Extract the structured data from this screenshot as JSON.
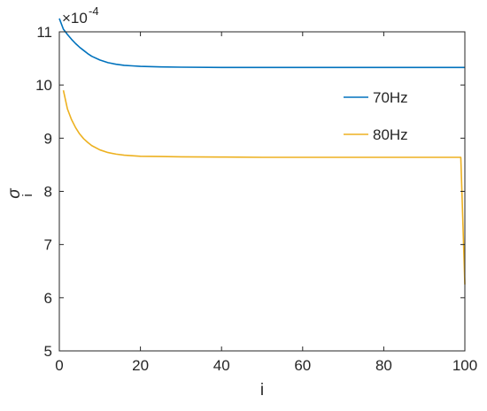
{
  "chart_data": {
    "type": "line",
    "title": "",
    "xlabel": "i",
    "ylabel": "σ",
    "ylabel_subscript": "i",
    "exponent": "×10",
    "exponent_power": "-4",
    "xlim": [
      0,
      100
    ],
    "ylim": [
      5,
      11
    ],
    "xticks": [
      0,
      20,
      40,
      60,
      80,
      100
    ],
    "yticks": [
      5,
      6,
      7,
      8,
      9,
      10,
      11
    ],
    "grid": false,
    "legend_position": "right-center",
    "series": [
      {
        "name": "70Hz",
        "color": "#0072BD",
        "x": [
          0,
          1,
          2,
          3,
          4,
          5,
          6,
          7,
          8,
          10,
          12,
          14,
          16,
          18,
          20,
          25,
          30,
          40,
          50,
          60,
          70,
          80,
          90,
          95,
          100
        ],
        "y": [
          11.25,
          11.05,
          10.95,
          10.86,
          10.78,
          10.71,
          10.65,
          10.59,
          10.54,
          10.47,
          10.42,
          10.39,
          10.37,
          10.36,
          10.35,
          10.34,
          10.335,
          10.33,
          10.33,
          10.33,
          10.33,
          10.33,
          10.33,
          10.33,
          10.33
        ]
      },
      {
        "name": "80Hz",
        "color": "#EDB120",
        "x": [
          1,
          2,
          3,
          4,
          5,
          6,
          7,
          8,
          10,
          12,
          14,
          16,
          18,
          20,
          25,
          30,
          40,
          50,
          60,
          70,
          80,
          90,
          95,
          98,
          99,
          100
        ],
        "y": [
          9.9,
          9.55,
          9.35,
          9.2,
          9.08,
          8.99,
          8.92,
          8.86,
          8.78,
          8.73,
          8.7,
          8.68,
          8.67,
          8.66,
          8.655,
          8.65,
          8.645,
          8.64,
          8.64,
          8.64,
          8.64,
          8.64,
          8.64,
          8.64,
          8.64,
          6.25
        ]
      }
    ]
  }
}
